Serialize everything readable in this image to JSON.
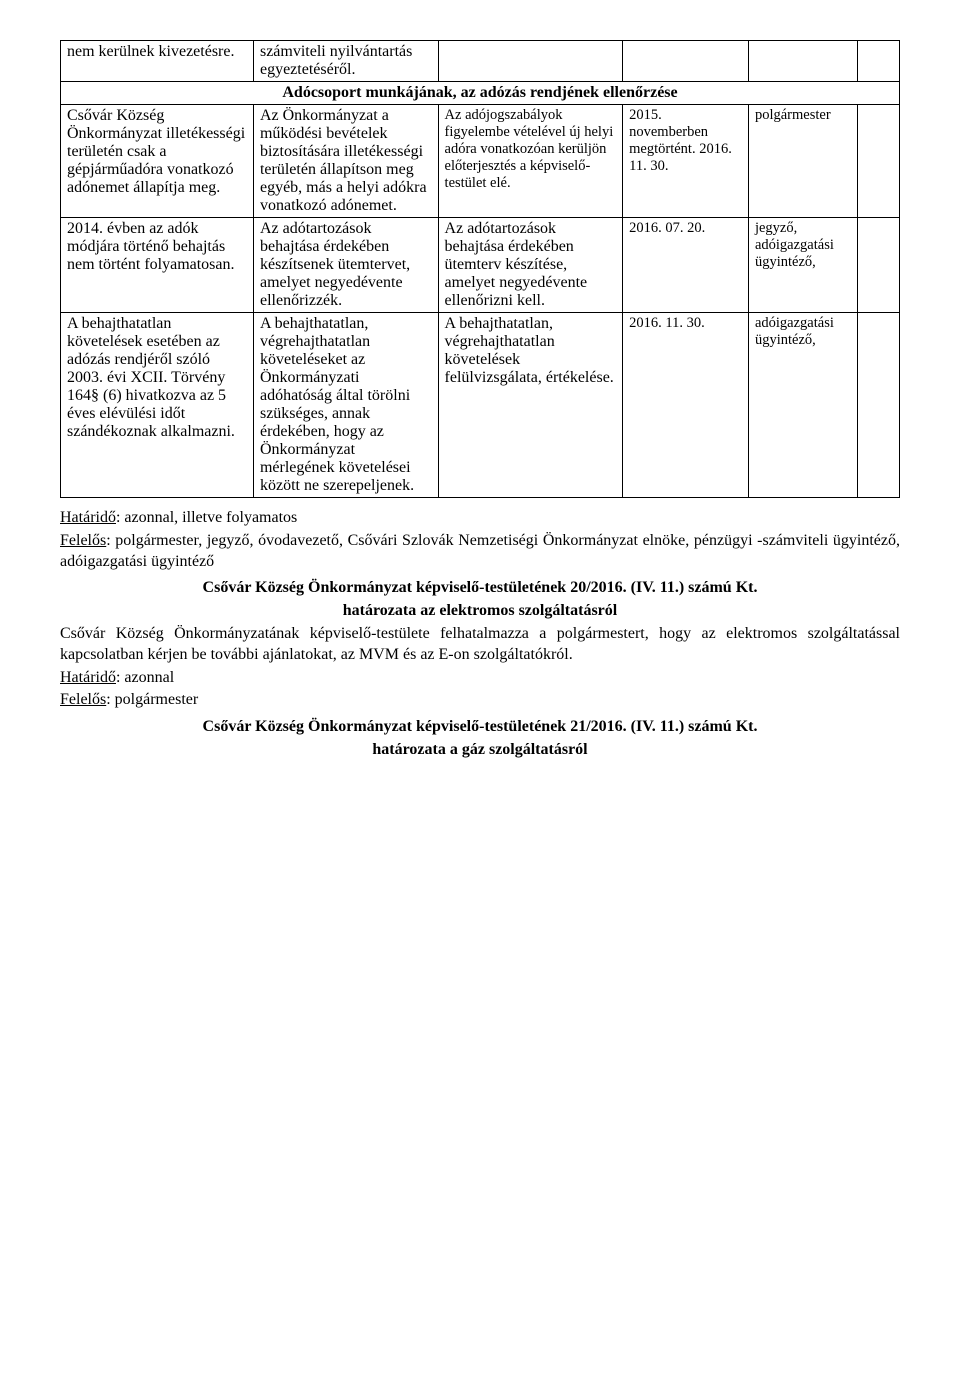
{
  "table": {
    "r1c1": "nem kerülnek kivezetésre.",
    "r1c2": "számviteli nyilvántartás egyeztetéséről.",
    "section_header": "Adócsoport munkájának, az adózás rendjének ellenőrzése",
    "r3c1": "Csővár Község Önkormányzat illetékességi területén csak a gépjárműadóra vonatkozó adónemet állapítja meg.",
    "r3c2": "Az Önkormányzat a működési bevételek biztosítására illetékességi területén állapítson meg egyéb, más a helyi adókra vonatkozó adónemet.",
    "r3c3": "Az adójogszabályok figyelembe vételével új helyi adóra vonatkozóan kerüljön előterjesztés a képviselő-testület elé.",
    "r3c4": "2015. novemberben megtörtént. 2016. 11. 30.",
    "r3c5": "polgármester",
    "r4c1": "2014. évben az adók módjára történő behajtás nem történt folyamatosan.",
    "r4c2": "Az adótartozások behajtása érdekében készítsenek ütemtervet, amelyet negyedévente ellenőrizzék.",
    "r4c3": "Az adótartozások behajtása érdekében ütemterv készítése, amelyet negyedévente ellenőrizni kell.",
    "r4c4": "2016. 07. 20.",
    "r4c5": "jegyző, adóigazgatási ügyintéző,",
    "r5c1": "A behajthatatlan követelések esetében az adózás rendjéről szóló 2003. évi XCII. Törvény 164§ (6) hivatkozva az 5 éves elévülési időt szándékoznak alkalmazni.",
    "r5c2": "A behajthatatlan, végrehajthatatlan követeléseket az Önkormányzati adóhatóság által törölni szükséges, annak érdekében, hogy az Önkormányzat mérlegének követelései között ne szerepeljenek.",
    "r5c3": "A behajthatatlan, végrehajthatatlan követelések felülvizsgálata, értékelése.",
    "r5c4": "2016. 11. 30.",
    "r5c5": "adóigazgatási ügyintéző,"
  },
  "footer1": {
    "line1_u": "Határidő",
    "line1_rest": ": azonnal, illetve folyamatos",
    "line2_u": "Felelős",
    "line2_rest": ": polgármester, jegyző, óvodavezető, Csővári Szlovák Nemzetiségi Önkormányzat elnöke, pénzügyi -számviteli ügyintéző, adóigazgatási ügyintéző"
  },
  "hat20": {
    "title1": "Csővár Község Önkormányzat képviselő-testületének 20/2016. (IV. 11.) számú Kt.",
    "title2": "határozata az elektromos szolgáltatásról",
    "body": "Csővár Község Önkormányzatának képviselő-testülete felhatalmazza a polgármestert, hogy az elektromos szolgáltatással kapcsolatban kérjen be további ajánlatokat, az MVM és az E-on szolgáltatókról.",
    "deadline_u": "Határidő",
    "deadline_rest": ": azonnal",
    "resp_u": "Felelős",
    "resp_rest": ": polgármester"
  },
  "hat21": {
    "title1": "Csővár Község Önkormányzat képviselő-testületének 21/2016. (IV. 11.) számú Kt.",
    "title2": "határozata a gáz szolgáltatásról"
  }
}
